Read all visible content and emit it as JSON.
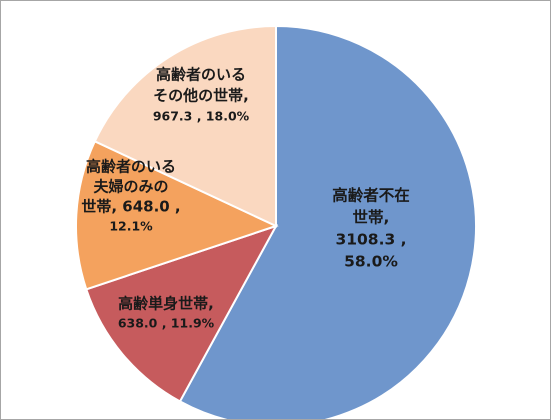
{
  "chart_data": {
    "type": "pie",
    "start_angle_deg": 0,
    "direction": "clockwise",
    "slices": [
      {
        "name_lines": [
          "高齢者不在",
          "世帯,"
        ],
        "value_lines": [
          "3108.3 ,",
          "58.0%"
        ],
        "value": 3108.3,
        "percent": 58.0,
        "color": "#6f96cc"
      },
      {
        "name_lines": [
          "高齢単身世帯,"
        ],
        "value_lines": [
          "638.0 , 11.9%"
        ],
        "value": 638.0,
        "percent": 11.9,
        "color": "#c65b5d"
      },
      {
        "name_lines": [
          "高齢者のいる",
          "夫婦のみの",
          "世帯, 648.0 ,"
        ],
        "value_lines": [
          "12.1%"
        ],
        "value": 648.0,
        "percent": 12.1,
        "color": "#f4a25e"
      },
      {
        "name_lines": [
          "高齢者のいる",
          "その他の世帯,"
        ],
        "value_lines": [
          "967.3 , 18.0%"
        ],
        "value": 967.3,
        "percent": 18.0,
        "color": "#fad8c0"
      }
    ]
  }
}
